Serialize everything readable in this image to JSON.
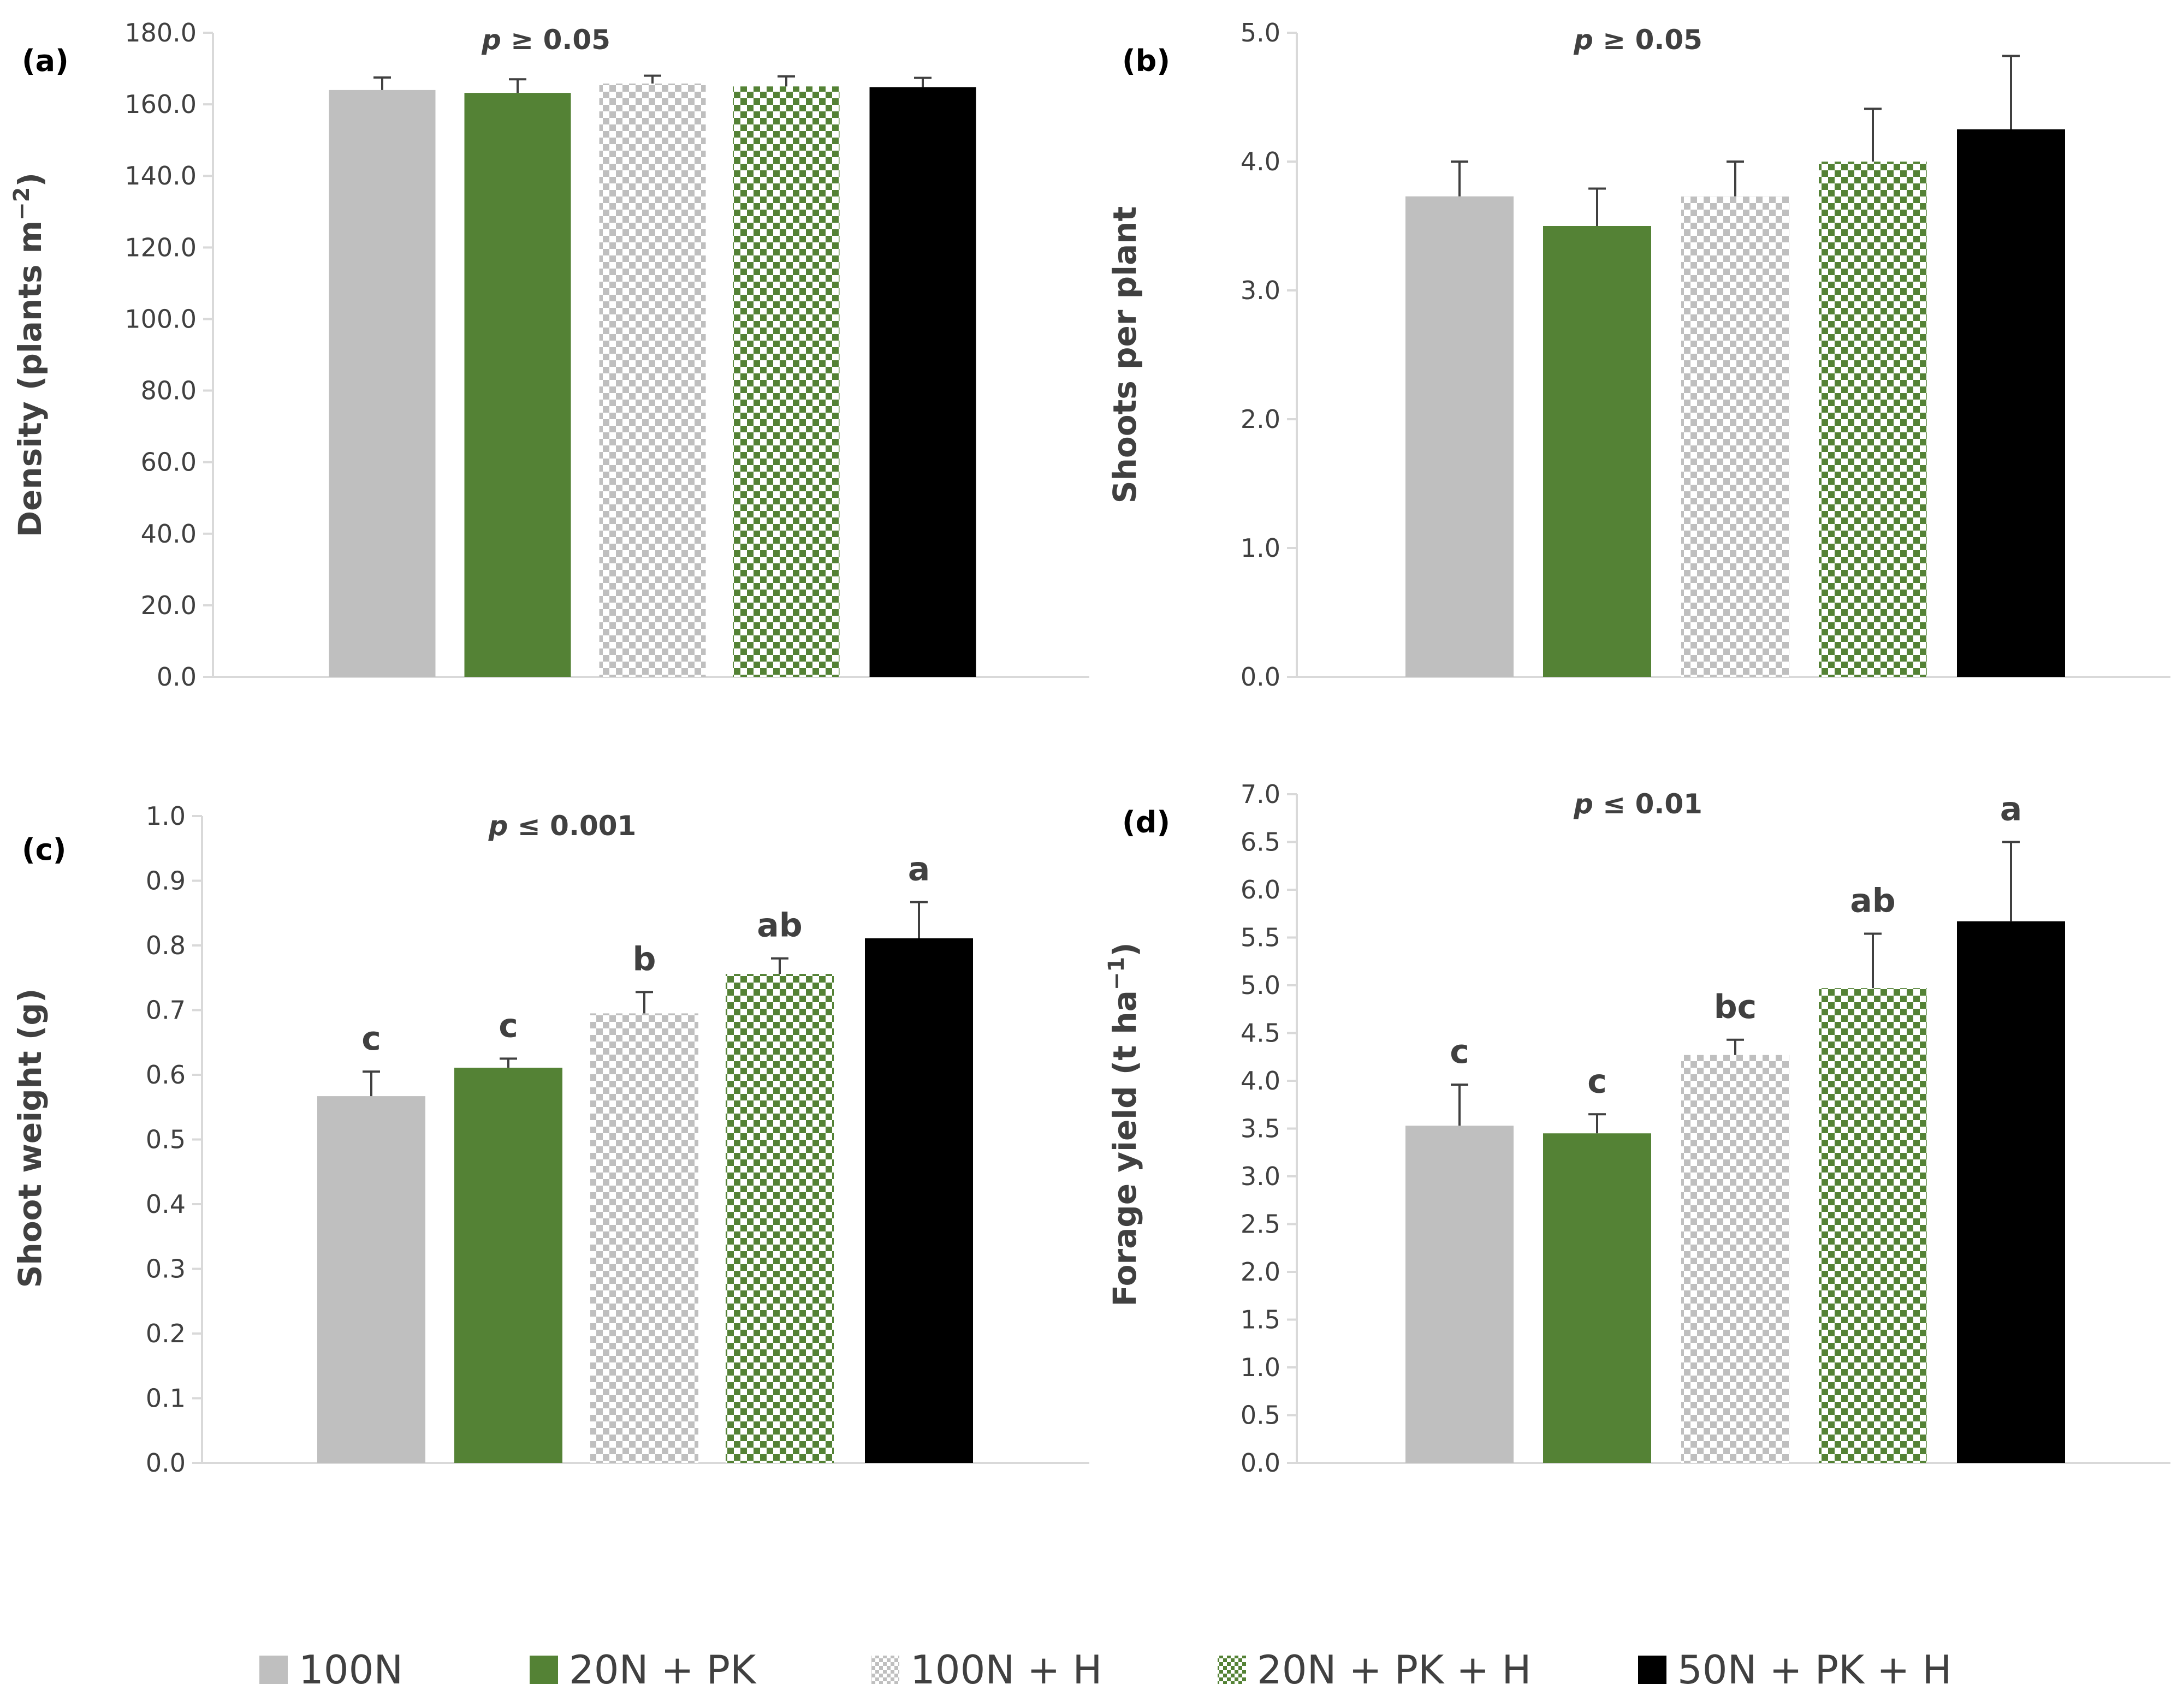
{
  "treatments": [
    "100N",
    "20N + PK",
    "100N + H",
    "20N + PK + H",
    "50N + PK + H"
  ],
  "treatment_styles": [
    {
      "fill": "#bfbfbf",
      "pattern": "solid"
    },
    {
      "fill": "#548235",
      "pattern": "solid"
    },
    {
      "fill": "#bfbfbf",
      "pattern": "checker"
    },
    {
      "fill": "#548235",
      "pattern": "checker"
    },
    {
      "fill": "#000000",
      "pattern": "solid"
    }
  ],
  "colors": {
    "axis": "#d9d9d9",
    "text": "#404040",
    "errorbar": "#404040"
  },
  "legend": {
    "items": [
      "100N",
      "20N + PK",
      "100N + H",
      "20N + PK + H",
      "50N + PK + H"
    ]
  },
  "chart_data": [
    {
      "panel": "(a)",
      "type": "bar",
      "title": "",
      "significance": "p ≥ 0.05",
      "significance_italic": "p",
      "significance_rest": " ≥ 0.05",
      "ylabel": "Density (plants m",
      "ylabel_sup": "−2",
      "ylabel_end": ")",
      "ylim": [
        0,
        180
      ],
      "yticks": [
        0,
        20,
        40,
        60,
        80,
        100,
        120,
        140,
        160,
        180
      ],
      "tick_decimals": 1,
      "categories": [
        "100N",
        "20N + PK",
        "100N + H",
        "20N + PK + H",
        "50N + PK + H"
      ],
      "values": [
        164.0,
        163.2,
        165.8,
        165.0,
        164.8
      ],
      "errors": [
        3.5,
        3.8,
        2.2,
        2.8,
        2.6
      ],
      "letters": [
        "",
        "",
        "",
        "",
        ""
      ]
    },
    {
      "panel": "(b)",
      "type": "bar",
      "title": "",
      "significance": "p ≥ 0.05",
      "significance_italic": "p",
      "significance_rest": " ≥ 0.05",
      "ylabel": "Shoots per plant",
      "ylabel_sup": "",
      "ylabel_end": "",
      "ylim": [
        0,
        5
      ],
      "yticks": [
        0,
        1,
        2,
        3,
        4,
        5
      ],
      "tick_decimals": 1,
      "categories": [
        "100N",
        "20N + PK",
        "100N + H",
        "20N + PK + H",
        "50N + PK + H"
      ],
      "values": [
        3.73,
        3.5,
        3.73,
        4.0,
        4.25
      ],
      "errors": [
        0.27,
        0.29,
        0.27,
        0.41,
        0.57
      ],
      "letters": [
        "",
        "",
        "",
        "",
        ""
      ]
    },
    {
      "panel": "(c)",
      "type": "bar",
      "title": "",
      "significance": "p ≤ 0.001",
      "significance_italic": "p",
      "significance_rest": " ≤ 0.001",
      "ylabel": "Shoot weight (g)",
      "ylabel_sup": "",
      "ylabel_end": "",
      "ylim": [
        0,
        1
      ],
      "yticks": [
        0,
        0.1,
        0.2,
        0.3,
        0.4,
        0.5,
        0.6,
        0.7,
        0.8,
        0.9,
        1.0
      ],
      "tick_decimals": 1,
      "categories": [
        "100N",
        "20N + PK",
        "100N + H",
        "20N + PK + H",
        "50N + PK + H"
      ],
      "values": [
        0.567,
        0.611,
        0.695,
        0.756,
        0.811
      ],
      "errors": [
        0.038,
        0.014,
        0.033,
        0.024,
        0.056
      ],
      "letters": [
        "c",
        "c",
        "b",
        "ab",
        "a"
      ]
    },
    {
      "panel": "(d)",
      "type": "bar",
      "title": "",
      "significance": "p ≤ 0.01",
      "significance_italic": "p",
      "significance_rest": " ≤ 0.01",
      "ylabel": "Forage yield (t ha",
      "ylabel_sup": "−1",
      "ylabel_end": ")",
      "ylim": [
        0,
        7
      ],
      "yticks": [
        0,
        0.5,
        1.0,
        1.5,
        2.0,
        2.5,
        3.0,
        3.5,
        4.0,
        4.5,
        5.0,
        5.5,
        6.0,
        6.5,
        7.0
      ],
      "tick_decimals": 1,
      "categories": [
        "100N",
        "20N + PK",
        "100N + H",
        "20N + PK + H",
        "50N + PK + H"
      ],
      "values": [
        3.53,
        3.45,
        4.27,
        4.97,
        5.67
      ],
      "errors": [
        0.43,
        0.2,
        0.16,
        0.57,
        0.83
      ],
      "letters": [
        "c",
        "c",
        "bc",
        "ab",
        "a"
      ]
    }
  ]
}
